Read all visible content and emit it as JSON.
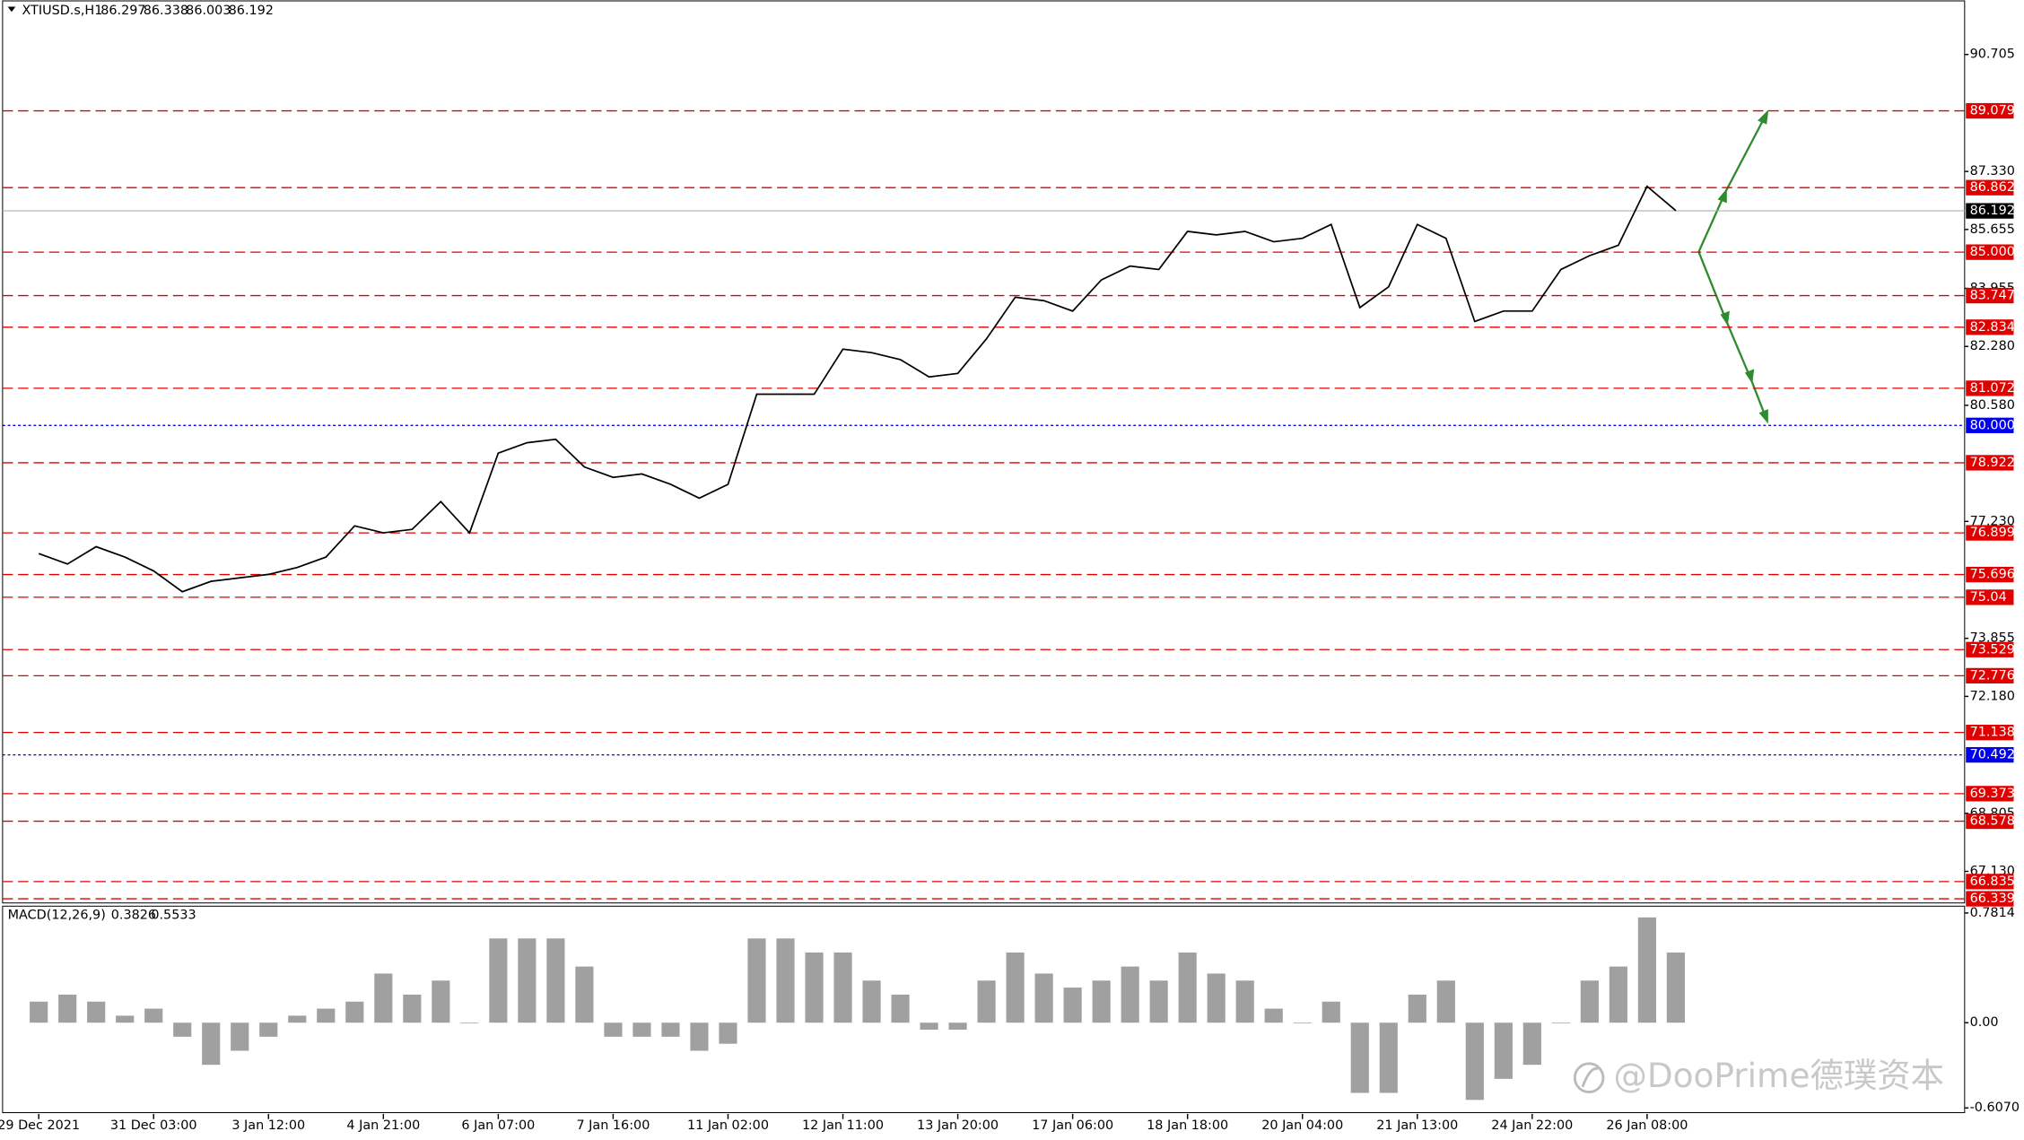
{
  "chart_data": [
    {
      "type": "line",
      "title": "XTIUSD.s,H1",
      "ohlc": [
        86.297,
        86.338,
        86.003,
        86.192
      ],
      "categories": [
        "29 Dec 2021",
        null,
        null,
        null,
        "31 Dec 03:00",
        null,
        null,
        null,
        "3 Jan 12:00",
        null,
        null,
        null,
        "4 Jan 21:00",
        null,
        null,
        null,
        "6 Jan 07:00",
        null,
        null,
        null,
        "7 Jan 16:00",
        null,
        null,
        null,
        "11 Jan 02:00",
        null,
        null,
        null,
        "12 Jan 11:00",
        null,
        null,
        null,
        "13 Jan 20:00",
        null,
        null,
        null,
        "17 Jan 06:00",
        null,
        null,
        null,
        "18 Jan 18:00",
        null,
        null,
        null,
        "20 Jan 04:00",
        null,
        null,
        null,
        "21 Jan 13:00",
        null,
        null,
        null,
        "24 Jan 22:00",
        null,
        null,
        null,
        "26 Jan 08:00",
        null
      ],
      "values": [
        76.3,
        76.0,
        76.5,
        76.2,
        75.8,
        75.2,
        75.5,
        75.6,
        75.7,
        75.9,
        76.2,
        77.1,
        76.9,
        77.0,
        77.8,
        76.9,
        79.2,
        79.5,
        79.6,
        78.8,
        78.5,
        78.6,
        78.3,
        77.9,
        78.3,
        80.9,
        80.9,
        80.9,
        82.2,
        82.1,
        81.9,
        81.4,
        81.5,
        82.5,
        83.7,
        83.6,
        83.3,
        84.2,
        84.6,
        84.5,
        85.6,
        85.5,
        85.6,
        85.3,
        85.4,
        85.8,
        83.4,
        84.0,
        85.8,
        85.4,
        83.0,
        83.3,
        83.3,
        84.5,
        84.9,
        85.2,
        86.9,
        86.2
      ],
      "color": "#000000",
      "ylim": [
        66.2,
        92.27
      ],
      "yticks": [
        90.705,
        {
          "value": 87.33,
          "label": "87.330"
        },
        85.655,
        83.955,
        {
          "value": 82.28,
          "label": "82.280"
        },
        {
          "value": 80.58,
          "label": "80.580"
        },
        {
          "value": 77.23,
          "label": "77.230"
        },
        73.855,
        {
          "value": 72.18,
          "label": "72.180"
        },
        68.805,
        {
          "value": 67.13,
          "label": "67.130"
        }
      ],
      "levels": [
        89.079,
        86.862,
        {
          "value": 85,
          "label": "85.000"
        },
        83.747,
        82.834,
        81.072,
        78.922,
        76.899,
        75.696,
        75.04,
        73.529,
        72.776,
        71.138,
        69.373,
        68.578,
        66.835,
        66.339
      ],
      "level_color": "#e00000",
      "pivot_levels": [
        {
          "value": 80,
          "label": "80.000"
        },
        70.492
      ],
      "pivot_color": "#0000ee"
    },
    {
      "type": "bar",
      "title": "MACD(12,26,9)",
      "readings": [
        0.3826,
        0.5533
      ],
      "values": [
        0.15,
        0.2,
        0.15,
        0.05,
        0.1,
        -0.1,
        -0.3,
        -0.2,
        -0.1,
        0.05,
        0.1,
        0.15,
        0.35,
        0.2,
        0.3,
        0.0,
        0.6,
        0.6,
        0.6,
        0.4,
        -0.1,
        -0.1,
        -0.1,
        -0.2,
        -0.15,
        0.6,
        0.6,
        0.5,
        0.5,
        0.3,
        0.2,
        -0.05,
        -0.05,
        0.3,
        0.5,
        0.35,
        0.25,
        0.3,
        0.4,
        0.3,
        0.5,
        0.35,
        0.3,
        0.1,
        0.0,
        0.15,
        -0.5,
        -0.5,
        0.2,
        0.3,
        -0.55,
        -0.4,
        -0.3,
        0.0,
        0.3,
        0.4,
        0.75,
        0.5
      ],
      "color": "#a0a0a0",
      "ylim": [
        -0.65,
        0.83
      ],
      "yticks": [
        0.7814,
        {
          "value": 0,
          "label": "0.00"
        },
        {
          "value": -0.607,
          "label": "-0.6070"
        }
      ]
    }
  ],
  "watermark": "@DooPrime德璞资本"
}
